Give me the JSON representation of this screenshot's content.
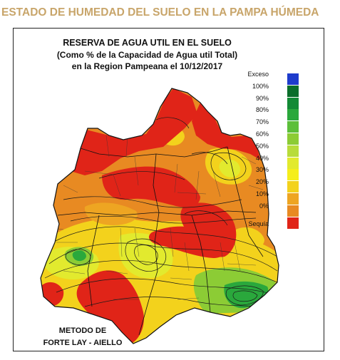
{
  "page_heading": "ESTADO DE HUMEDAD DEL SUELO EN LA PAMPA HÚMEDA",
  "map": {
    "title_line1": "RESERVA DE AGUA UTIL EN EL SUELO",
    "title_line2": "(Como % de la Capacidad de  Agua util Total)",
    "title_line3": "en la Region Pampeana el 10/12/2017",
    "method_line1": "METODO DE",
    "method_line2": "FORTE LAY - AIELLO"
  },
  "legend": [
    {
      "label": "Exceso",
      "color": "#1e3ccc"
    },
    {
      "label": "100%",
      "color": "#0a6e2a"
    },
    {
      "label": "90%",
      "color": "#138a35"
    },
    {
      "label": "80%",
      "color": "#2aa83c"
    },
    {
      "label": "70%",
      "color": "#5cbf3a"
    },
    {
      "label": "60%",
      "color": "#8ccc35"
    },
    {
      "label": "50%",
      "color": "#b8dc3a"
    },
    {
      "label": "40%",
      "color": "#e2ea2e"
    },
    {
      "label": "30%",
      "color": "#f5ee1c"
    },
    {
      "label": "20%",
      "color": "#f3d21c"
    },
    {
      "label": "10%",
      "color": "#eea522"
    },
    {
      "label": "0%",
      "color": "#e88a22"
    },
    {
      "label": "Sequía",
      "color": "#e02418"
    }
  ],
  "zones": {
    "drought": "#e02418",
    "dry": "#e88a22",
    "low": "#eea522",
    "mid": "#f3d21c",
    "moderate": "#e2ea2e",
    "wet": "#8ccc35",
    "very_wet": "#2aa83c",
    "saturated": "#0a6e2a"
  }
}
